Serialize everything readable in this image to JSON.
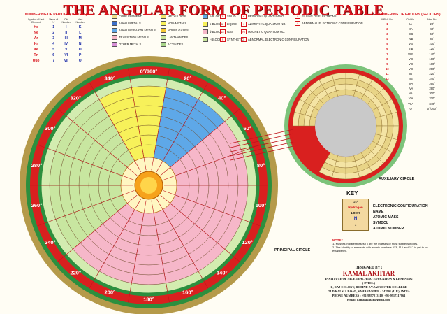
{
  "title": "THE ANGULAR FORM OF PERIODIC TABLE",
  "periods": {
    "heading": "NUMBERING OF PERIODS (TRACKS)",
    "columns": [
      "Symbol of Last Element",
      "Value of 'n'",
      "Old Number",
      "New Number"
    ],
    "rows": [
      [
        "He",
        "1",
        "I",
        "K"
      ],
      [
        "Ne",
        "2",
        "II",
        "L"
      ],
      [
        "Ar",
        "3",
        "III",
        "M"
      ],
      [
        "Kr",
        "4",
        "IV",
        "N"
      ],
      [
        "Xe",
        "5",
        "V",
        "O"
      ],
      [
        "Rn",
        "6",
        "VI",
        "P"
      ],
      [
        "Uuo",
        "7",
        "VII",
        "Q"
      ]
    ]
  },
  "legend": {
    "categories": [
      {
        "label": "CORE ELEMENT",
        "color": "#f3e28a"
      },
      {
        "label": "ALKALI METALS",
        "color": "#3b6fc9"
      },
      {
        "label": "ALKALINE EARTH METALS",
        "color": "#5ea8e8"
      },
      {
        "label": "TRANSITION METALS",
        "color": "#f6b7c9"
      },
      {
        "label": "OTHER METALS",
        "color": "#d78fd6"
      },
      {
        "label": "METALLOIDS",
        "color": "#f2e56a"
      },
      {
        "label": "NON-METALS",
        "color": "#f7f15a"
      },
      {
        "label": "NOBLE GASES",
        "color": "#f6c935"
      },
      {
        "label": "LANTHANIDES",
        "color": "#c9e59a"
      },
      {
        "label": "ACTINIDES",
        "color": "#a8d58a"
      }
    ],
    "blocks": [
      "s-BLOCK",
      "p-BLOCK",
      "d-BLOCK",
      "f-BLOCK"
    ],
    "states": [
      {
        "code": "S",
        "label": "SOLID"
      },
      {
        "code": "L",
        "label": "LIQUID"
      },
      {
        "code": "G",
        "label": "GAS"
      },
      {
        "code": "S",
        "label": "SYNTHETIC"
      }
    ],
    "quantum": [
      {
        "code": "n",
        "label": "PRINCIPAL QUANTUM NO."
      },
      {
        "code": "l",
        "label": "AZIMUTHAL QUANTUM NO."
      },
      {
        "code": "m",
        "label": "MAGNETIC QUANTUM NO."
      },
      {
        "code": "*",
        "label": "ABNORMAL ELECTRONIC CONFIGURATION"
      }
    ],
    "filling": "FILLING OF ELECTRONS",
    "abnormal": "ABNORMAL ELECTRONIC CONFIGURATION"
  },
  "groups": {
    "heading": "NUMBERING OF GROUPS (SECTORS)",
    "columns": [
      "IUPAC No.",
      "Old No.",
      "New No."
    ],
    "rows": [
      [
        "1",
        "IA",
        "20°"
      ],
      [
        "2",
        "IIA",
        "40°"
      ],
      [
        "3",
        "IIIB",
        "60°"
      ],
      [
        "4",
        "IVB",
        "80°"
      ],
      [
        "5",
        "VB",
        "100°"
      ],
      [
        "6",
        "VIB",
        "120°"
      ],
      [
        "7",
        "VIIB",
        "140°"
      ],
      [
        "8",
        "VIII",
        "160°"
      ],
      [
        "9",
        "VIII",
        "180°"
      ],
      [
        "10",
        "VIII",
        "200°"
      ],
      [
        "11",
        "IB",
        "220°"
      ],
      [
        "12",
        "IIB",
        "240°"
      ],
      [
        "13",
        "IIIA",
        "260°"
      ],
      [
        "14",
        "IVA",
        "280°"
      ],
      [
        "15",
        "VA",
        "300°"
      ],
      [
        "16",
        "VIA",
        "320°"
      ],
      [
        "17",
        "VIIA",
        "340°"
      ],
      [
        "18",
        "O",
        "0°/360°"
      ]
    ]
  },
  "principal_circle": {
    "label": "PRINCIPAL CIRCLE",
    "angles": [
      "0°/360°",
      "20°",
      "40°",
      "60°",
      "80°",
      "100°",
      "120°",
      "140°",
      "160°",
      "180°",
      "200°",
      "220°",
      "240°",
      "260°",
      "280°",
      "300°",
      "320°",
      "340°"
    ]
  },
  "auxiliary_circle": {
    "label": "AUXILIARY CIRCLE"
  },
  "key": {
    "title": "KEY",
    "example": {
      "config": "1s¹",
      "name": "Hydrogen",
      "mass": "1.0079",
      "symbol": "H",
      "number": "1"
    },
    "labels": [
      "ELECTRONIC CONFIGURATION",
      "NAME",
      "ATOMIC MASS",
      "SYMBOL",
      "ATOMIC NUMBER"
    ]
  },
  "note": {
    "title": "NOTE :",
    "items": [
      "1- Masses in parentheses ( ) are the masses of most stable isotopes.",
      "2- The identity of elements with atomic numbers 113, 115 and 117 is yet to be established."
    ]
  },
  "credits": {
    "designed_by": "DESIGNED BY :",
    "author": "KAMAL AKHTAR",
    "institute": "INSTITUTE OF NICE TEACHING EDUCATION & LEARNING",
    "abbr": "( INTEL )",
    "address1": "1 , RAJ COLONY, BEHIND J.V.JAIN INTER COLLEGE",
    "address2": "OLD KALSIA ROAD, SAHARANPUR - 247001 (U.P.), INDIA",
    "phone": "PHONE NUMBERS : +91-9897213110, +91-9917317861",
    "email": "e-mail: kamalakhtar@gmail.com"
  },
  "colors": {
    "title_red": "#d8121b",
    "ring_red": "#d9201f",
    "ring_green": "#1f8a3a",
    "ring_olive": "#b59a4a",
    "sector_green": "#c8e6a0",
    "sector_pink": "#f6b7c9",
    "sector_yellow": "#f7f15a",
    "sector_blue": "#5ea8e8",
    "core_orange": "#f6a21b"
  }
}
